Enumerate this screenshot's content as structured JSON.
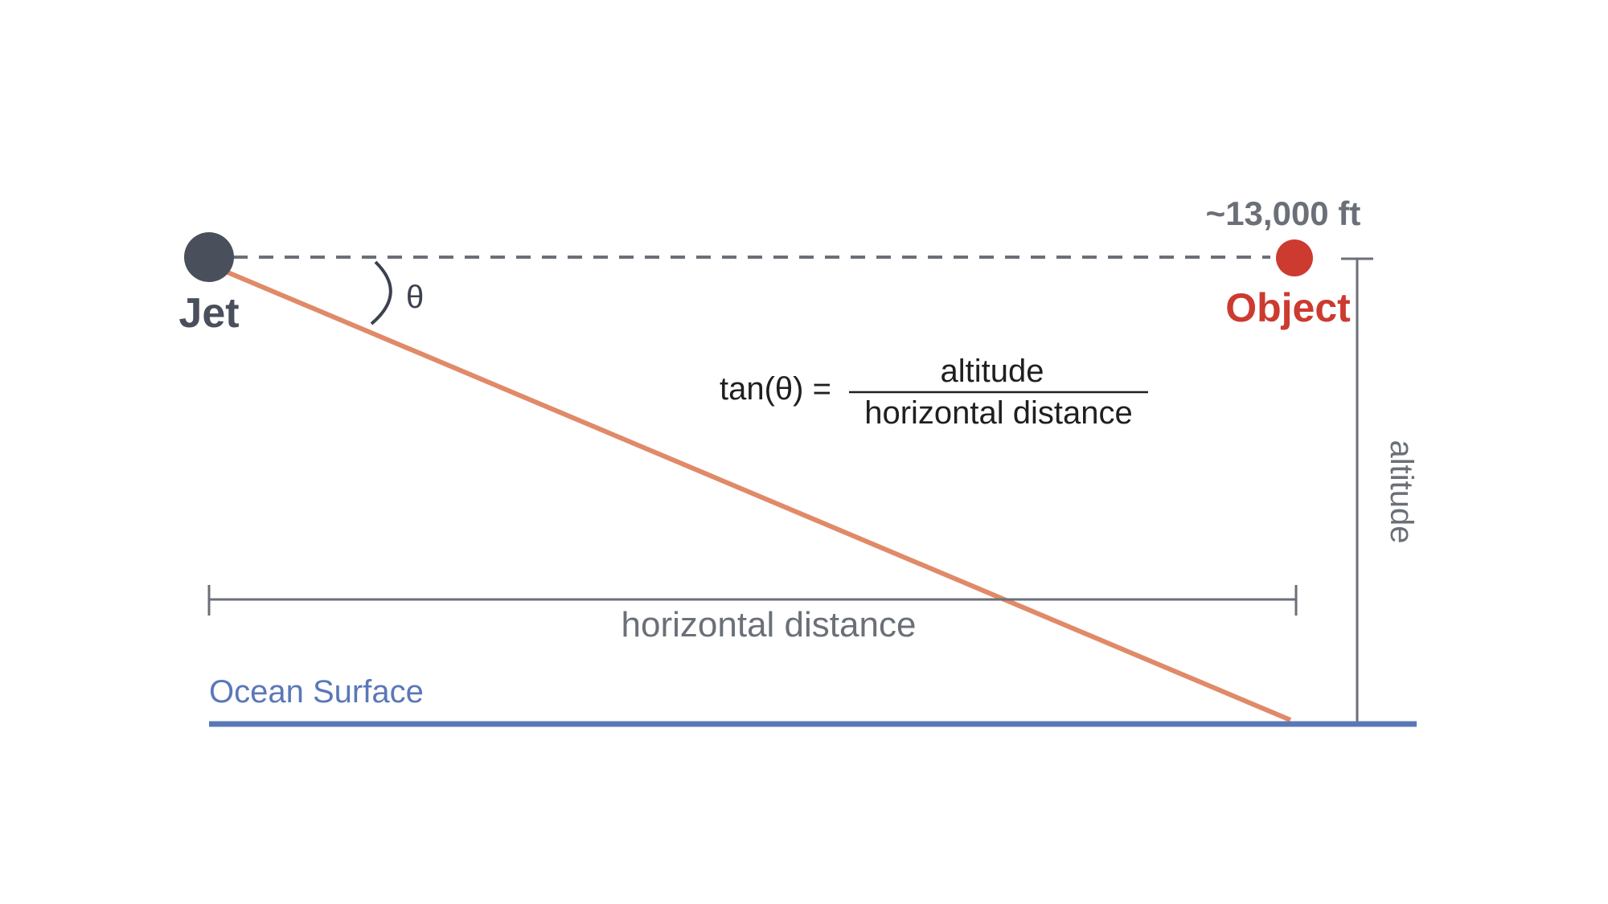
{
  "labels": {
    "jet": "Jet",
    "object": "Object",
    "altitude_value": "~13,000 ft",
    "theta": "θ",
    "altitude_axis": "altitude",
    "horizontal_distance": "horizontal distance",
    "ocean_surface": "Ocean Surface"
  },
  "formula": {
    "lhs": "tan(θ) =",
    "numerator": "altitude",
    "denominator": "horizontal distance"
  },
  "colors": {
    "jet": "#4a4f5c",
    "object": "#cc3a30",
    "sight_line": "#e08a68",
    "ocean": "#5a78b8",
    "guide": "#6b6f78",
    "dashed": "#6b6f78",
    "text_dark": "#1f1f1f"
  }
}
